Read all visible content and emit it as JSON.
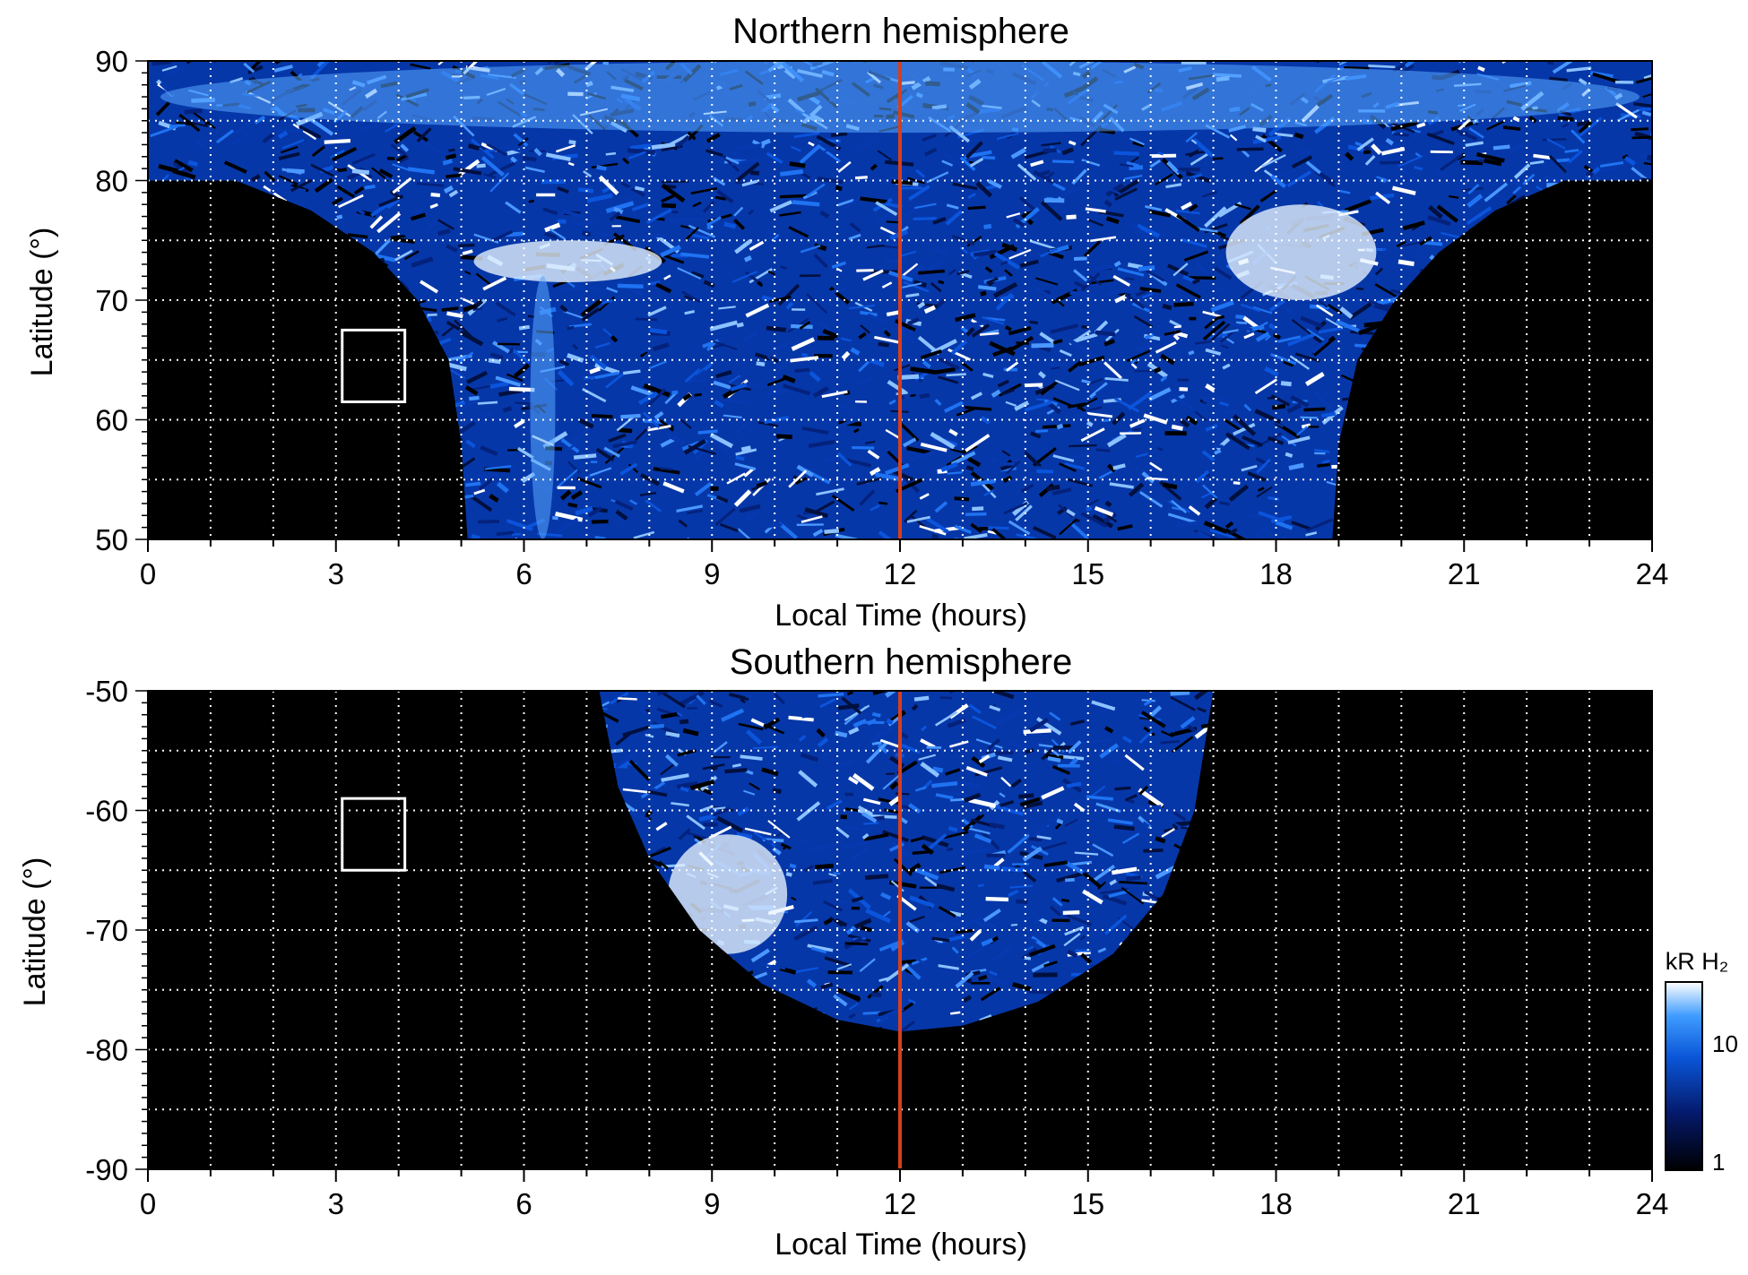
{
  "chart_data": [
    {
      "type": "heatmap",
      "title": "Northern hemisphere",
      "xlabel": "Local Time (hours)",
      "ylabel": "Latitude (°)",
      "xlim": [
        0,
        24
      ],
      "ylim": [
        50,
        90
      ],
      "x_ticks": [
        "0",
        "3",
        "6",
        "9",
        "12",
        "15",
        "18",
        "21",
        "24"
      ],
      "y_ticks": [
        "50",
        "60",
        "70",
        "80",
        "90"
      ],
      "grid": true,
      "reference_line_x": 12,
      "box": {
        "x": [
          3.1,
          4.1
        ],
        "y": [
          61.5,
          67.5
        ]
      },
      "coverage_edge": [
        [
          0,
          80
        ],
        [
          1.4,
          80
        ],
        [
          2.6,
          77.5
        ],
        [
          3.6,
          74
        ],
        [
          4.3,
          70
        ],
        [
          4.8,
          65
        ],
        [
          5.0,
          58
        ],
        [
          5.1,
          50
        ],
        [
          18.9,
          50
        ],
        [
          19.0,
          58
        ],
        [
          19.3,
          65
        ],
        [
          19.9,
          70
        ],
        [
          20.6,
          74
        ],
        [
          21.5,
          77.5
        ],
        [
          22.6,
          80
        ],
        [
          24,
          80
        ]
      ],
      "bright_regions": [
        {
          "x": [
            5.2,
            8.2
          ],
          "y": [
            71.5,
            75
          ],
          "level": "high"
        },
        {
          "x": [
            17.2,
            19.6
          ],
          "y": [
            70,
            78
          ],
          "level": "high"
        },
        {
          "x": [
            6.1,
            6.5
          ],
          "y": [
            50,
            72
          ],
          "level": "medium"
        },
        {
          "x": [
            0.2,
            23.8
          ],
          "y": [
            84,
            90
          ],
          "level": "medium"
        }
      ]
    },
    {
      "type": "heatmap",
      "title": "Southern hemisphere",
      "xlabel": "Local Time (hours)",
      "ylabel": "Latitude (°)",
      "xlim": [
        0,
        24
      ],
      "ylim": [
        -90,
        -50
      ],
      "x_ticks": [
        "0",
        "3",
        "6",
        "9",
        "12",
        "15",
        "18",
        "21",
        "24"
      ],
      "y_ticks": [
        "-50",
        "-60",
        "-70",
        "-80",
        "-90"
      ],
      "grid": true,
      "reference_line_x": 12,
      "box": {
        "x": [
          3.1,
          4.1
        ],
        "y": [
          -65,
          -59
        ]
      },
      "coverage_edge": [
        [
          7.2,
          -50
        ],
        [
          7.5,
          -58
        ],
        [
          8.0,
          -64
        ],
        [
          8.8,
          -70
        ],
        [
          9.8,
          -74.5
        ],
        [
          11.0,
          -77.5
        ],
        [
          12.0,
          -78.5
        ],
        [
          13.0,
          -78
        ],
        [
          14.2,
          -76
        ],
        [
          15.4,
          -72
        ],
        [
          16.2,
          -67
        ],
        [
          16.7,
          -60
        ],
        [
          17.0,
          -50
        ]
      ],
      "bright_regions": [
        {
          "x": [
            8.3,
            10.2
          ],
          "y": [
            -72,
            -62
          ],
          "level": "high"
        }
      ]
    }
  ],
  "colorbar": {
    "label": "kR H₂",
    "ticks": [
      "1",
      "10"
    ],
    "scale": "log",
    "colors": [
      "#000000",
      "#04196b",
      "#0a56d8",
      "#3f9cff",
      "#ffffff"
    ]
  }
}
